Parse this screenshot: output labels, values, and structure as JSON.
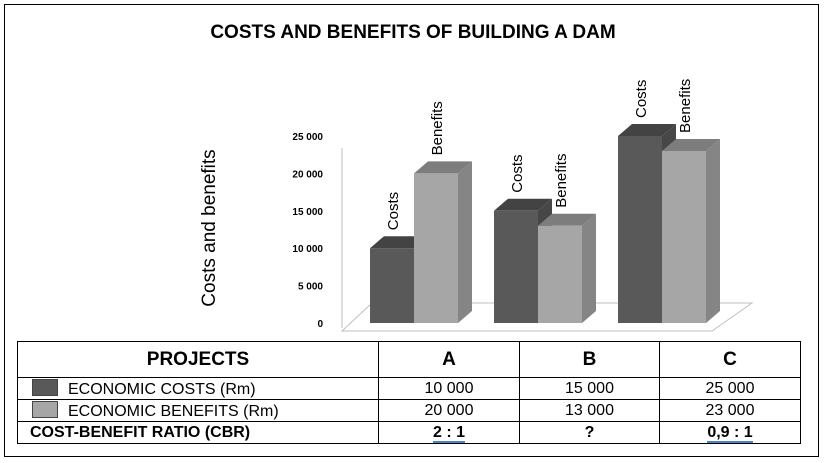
{
  "title": "COSTS AND BENEFITS OF BUILDING A DAM",
  "colors": {
    "costs": "#595959",
    "benefits": "#a6a6a6"
  },
  "chart_data": {
    "type": "bar",
    "title": "COSTS AND BENEFITS OF BUILDING A DAM",
    "ylabel": "Costs and benefits",
    "xlabel": "",
    "ylim": [
      0,
      25000
    ],
    "yticks": [
      "25 000",
      "20 000",
      "15 000",
      "10 000",
      "5 000",
      "0"
    ],
    "ytick_values": [
      25000,
      20000,
      15000,
      10000,
      5000,
      0
    ],
    "categories": [
      "A",
      "B",
      "C"
    ],
    "series": [
      {
        "name": "Costs",
        "values": [
          10000,
          15000,
          25000
        ],
        "color": "#595959"
      },
      {
        "name": "Benefits",
        "values": [
          20000,
          13000,
          23000
        ],
        "color": "#a6a6a6"
      }
    ],
    "grid": false,
    "style": "3d-column"
  },
  "table": {
    "header": [
      "PROJECTS",
      "A",
      "B",
      "C"
    ],
    "rows": [
      {
        "label": "ECONOMIC COSTS (Rm)",
        "values": [
          "10 000",
          "15 000",
          "25 000"
        ]
      },
      {
        "label": "ECONOMIC BENEFITS (Rm)",
        "values": [
          "20 000",
          "13 000",
          "23 000"
        ]
      },
      {
        "label": "COST-BENEFIT RATIO (CBR)",
        "values": [
          "2 : 1",
          "?",
          "0,9 : 1"
        ]
      }
    ]
  }
}
